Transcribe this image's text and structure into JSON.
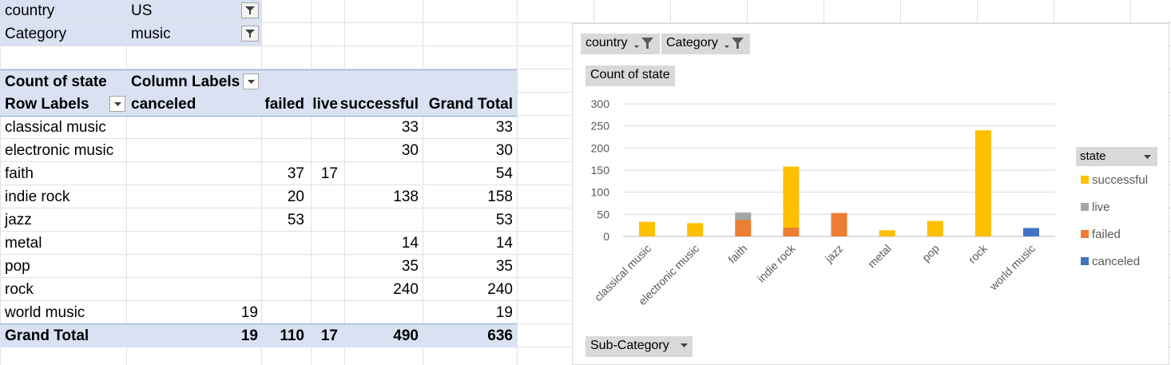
{
  "filters": [
    {
      "label": "country",
      "value": "US"
    },
    {
      "label": "Category",
      "value": "music"
    }
  ],
  "pivot": {
    "value_field": "Count of state",
    "column_labels": "Column Labels",
    "row_labels": "Row Labels",
    "columns": [
      "canceled",
      "failed",
      "live",
      "successful",
      "Grand Total"
    ],
    "rows": [
      {
        "label": "classical music",
        "canceled": "",
        "failed": "",
        "live": "",
        "successful": "33",
        "total": "33"
      },
      {
        "label": "electronic music",
        "canceled": "",
        "failed": "",
        "live": "",
        "successful": "30",
        "total": "30"
      },
      {
        "label": "faith",
        "canceled": "",
        "failed": "37",
        "live": "17",
        "successful": "",
        "total": "54"
      },
      {
        "label": "indie rock",
        "canceled": "",
        "failed": "20",
        "live": "",
        "successful": "138",
        "total": "158"
      },
      {
        "label": "jazz",
        "canceled": "",
        "failed": "53",
        "live": "",
        "successful": "",
        "total": "53"
      },
      {
        "label": "metal",
        "canceled": "",
        "failed": "",
        "live": "",
        "successful": "14",
        "total": "14"
      },
      {
        "label": "pop",
        "canceled": "",
        "failed": "",
        "live": "",
        "successful": "35",
        "total": "35"
      },
      {
        "label": "rock",
        "canceled": "",
        "failed": "",
        "live": "",
        "successful": "240",
        "total": "240"
      },
      {
        "label": "world music",
        "canceled": "19",
        "failed": "",
        "live": "",
        "successful": "",
        "total": "19"
      }
    ],
    "grand_total": {
      "label": "Grand Total",
      "canceled": "19",
      "failed": "110",
      "live": "17",
      "successful": "490",
      "total": "636"
    }
  },
  "chart_buttons": {
    "country": "country",
    "category": "Category",
    "value": "Count of state",
    "axis_field": "Sub-Category",
    "legend_field": "state"
  },
  "chart_data": {
    "type": "bar",
    "stacked": true,
    "categories": [
      "classical music",
      "electronic music",
      "faith",
      "indie rock",
      "jazz",
      "metal",
      "pop",
      "rock",
      "world music"
    ],
    "series": [
      {
        "name": "canceled",
        "color": "#4472c4",
        "values": [
          0,
          0,
          0,
          0,
          0,
          0,
          0,
          0,
          19
        ]
      },
      {
        "name": "failed",
        "color": "#ed7d31",
        "values": [
          0,
          0,
          37,
          20,
          53,
          0,
          0,
          0,
          0
        ]
      },
      {
        "name": "live",
        "color": "#a5a5a5",
        "values": [
          0,
          0,
          17,
          0,
          0,
          0,
          0,
          0,
          0
        ]
      },
      {
        "name": "successful",
        "color": "#ffc000",
        "values": [
          33,
          30,
          0,
          138,
          0,
          14,
          35,
          240,
          0
        ]
      }
    ],
    "legend_order": [
      "successful",
      "live",
      "failed",
      "canceled"
    ],
    "yticks": [
      0,
      50,
      100,
      150,
      200,
      250,
      300
    ],
    "ylim": [
      0,
      300
    ],
    "grid": true,
    "legend_position": "right"
  }
}
